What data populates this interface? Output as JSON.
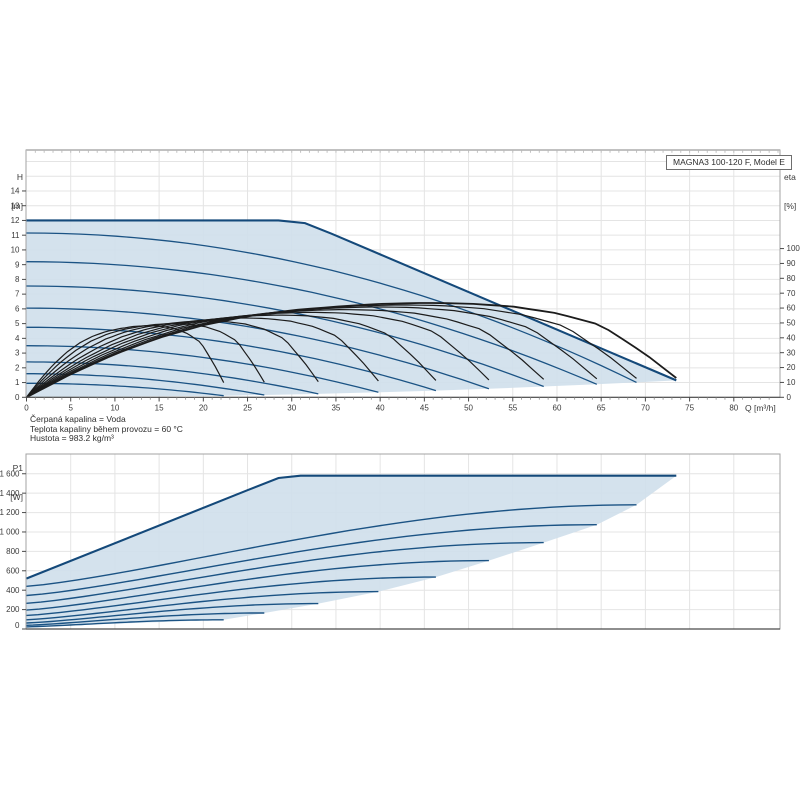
{
  "annotations": [
    "Čerpaná kapalina = Voda",
    "Teplota kapaliny během provozu = 60 °C",
    "Hustota = 983.2 kg/m³"
  ],
  "colors": {
    "fill": "#cfdfeb",
    "curve_blue": "#1b5384",
    "envelope_blue": "#14497a",
    "curve_black": "#1c1c1c",
    "grid": "#e4e4e4",
    "frame": "#a3a3a3",
    "frame_top": "#b8b8b8",
    "minor_tick_top": "#c2c2c2",
    "axis": "#4a4a4a",
    "text": "#3a3a3a"
  },
  "chart_data": [
    {
      "type": "line",
      "id": "head-efficiency-chart",
      "title": "MAGNA3 100-120 F, Model E",
      "xlabel": "Q [m³/h]",
      "ylabel_lines": [
        "H",
        "[m]"
      ],
      "ylabel_right_lines": [
        "eta",
        "[%]"
      ],
      "xlim": [
        0,
        85
      ],
      "x_ticks": [
        "0",
        "5",
        "10",
        "15",
        "20",
        "25",
        "30",
        "35",
        "40",
        "45",
        "50",
        "55",
        "60",
        "65",
        "70",
        "75",
        "80"
      ],
      "ylim": [
        0,
        16.8
      ],
      "y_ticks": [
        "0",
        "1",
        "2",
        "3",
        "4",
        "5",
        "6",
        "7",
        "8",
        "9",
        "10",
        "11",
        "12",
        "13",
        "14"
      ],
      "eta_lim": [
        0,
        100
      ],
      "eta_ticks": [
        "0",
        "10",
        "20",
        "30",
        "40",
        "50",
        "60",
        "70",
        "80",
        "90",
        "100"
      ],
      "grid": true,
      "legend": "none",
      "envelope": {
        "h_max": 12,
        "knee_q": 31,
        "q_max": 73.5,
        "h_at_q_max": 1.15
      },
      "speed_curves": [
        {
          "h0": 12.0,
          "q_end": 73.5,
          "h_end": 1.15,
          "envelope": true
        },
        {
          "h0": 11.15,
          "q_end": 69.0,
          "h_end": 1.01
        },
        {
          "h0": 9.2,
          "q_end": 64.5,
          "h_end": 0.885
        },
        {
          "h0": 7.55,
          "q_end": 58.5,
          "h_end": 0.73
        },
        {
          "h0": 6.05,
          "q_end": 52.3,
          "h_end": 0.58
        },
        {
          "h0": 4.75,
          "q_end": 46.3,
          "h_end": 0.455
        },
        {
          "h0": 3.5,
          "q_end": 39.8,
          "h_end": 0.337
        },
        {
          "h0": 2.4,
          "q_end": 33.0,
          "h_end": 0.232
        },
        {
          "h0": 1.6,
          "q_end": 26.9,
          "h_end": 0.154
        },
        {
          "h0": 0.95,
          "q_end": 22.3,
          "h_end": 0.106
        }
      ],
      "eta_base_curve": [
        [
          0,
          0
        ],
        [
          5,
          15.5
        ],
        [
          10,
          29
        ],
        [
          15,
          40
        ],
        [
          20,
          48.5
        ],
        [
          25,
          54.5
        ],
        [
          30,
          58.5
        ],
        [
          35,
          61
        ],
        [
          40,
          62.8
        ],
        [
          45,
          63.5
        ],
        [
          50,
          63
        ],
        [
          55,
          61
        ],
        [
          60,
          56.5
        ],
        [
          65,
          48.5
        ],
        [
          70,
          29
        ],
        [
          73.5,
          13
        ]
      ],
      "eta_peak_max": 63.5,
      "eta_peak_drop_per_speed": 22
    },
    {
      "type": "line",
      "id": "power-chart",
      "ylabel_lines": [
        "P1",
        "[W]"
      ],
      "ylim": [
        0,
        1800
      ],
      "y_ticks": [
        "0",
        "200",
        "400",
        "600",
        "800",
        "1 000",
        "1 200",
        "1 400",
        "1 600"
      ],
      "y_tick_values": [
        0,
        200,
        400,
        600,
        800,
        1000,
        1200,
        1400,
        1600
      ],
      "grid": true,
      "legend": "none",
      "envelope": {
        "p0": 520,
        "knee_q": 30,
        "p_plateau": 1580,
        "q_max": 73.5
      },
      "power_curves": [
        {
          "p0": 520,
          "q_end": 73.5,
          "p_end": 1580,
          "envelope": true
        },
        {
          "p0": 440,
          "q_end": 69.0,
          "p_end": 1280
        },
        {
          "p0": 345,
          "q_end": 64.5,
          "p_end": 1075
        },
        {
          "p0": 265,
          "q_end": 58.5,
          "p_end": 890
        },
        {
          "p0": 195,
          "q_end": 52.3,
          "p_end": 705
        },
        {
          "p0": 140,
          "q_end": 46.3,
          "p_end": 535
        },
        {
          "p0": 95,
          "q_end": 39.8,
          "p_end": 385
        },
        {
          "p0": 62,
          "q_end": 33.0,
          "p_end": 262
        },
        {
          "p0": 38,
          "q_end": 26.9,
          "p_end": 165
        },
        {
          "p0": 22,
          "q_end": 22.3,
          "p_end": 95
        }
      ]
    }
  ]
}
